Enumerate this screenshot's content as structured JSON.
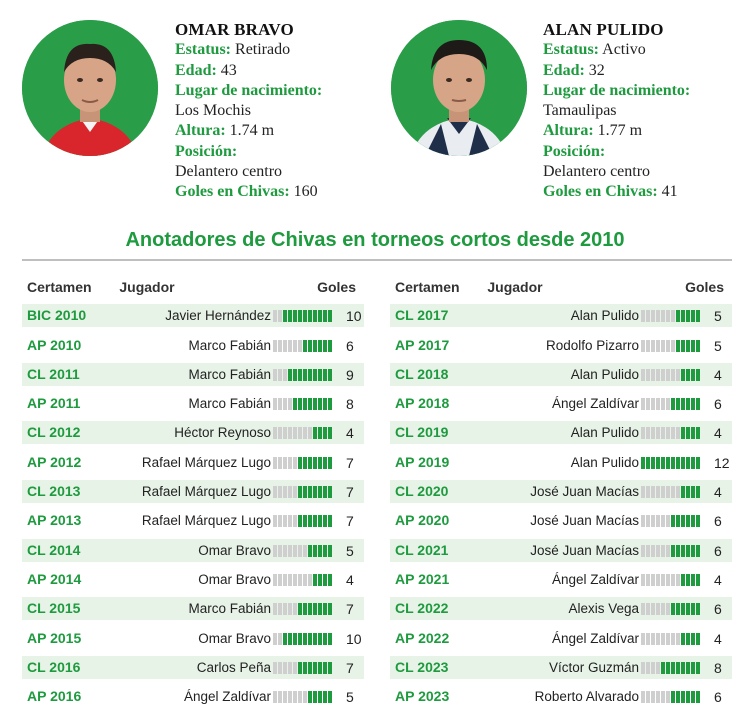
{
  "profiles": [
    {
      "name": "OMAR BRAVO",
      "status_label": "Estatus:",
      "status": "Retirado",
      "age_label": "Edad:",
      "age": "43",
      "birth_label": "Lugar de nacimiento:",
      "birth": "Los Mochis",
      "height_label": "Altura:",
      "height": "1.74 m",
      "position_label": "Posición:",
      "position": "Delantero centro",
      "goals_label": "Goles en Chivas:",
      "goals": "160"
    },
    {
      "name": "ALAN PULIDO",
      "status_label": "Estatus:",
      "status": "Activo",
      "age_label": "Edad:",
      "age": "32",
      "birth_label": "Lugar de nacimiento:",
      "birth": "Tamaulipas",
      "height_label": "Altura:",
      "height": "1.77 m",
      "position_label": "Posición:",
      "position": "Delantero centro",
      "goals_label": "Goles en Chivas:",
      "goals": "41"
    }
  ],
  "section_title": "Anotadores de Chivas en torneos cortos desde 2010",
  "columns": {
    "tournament": "Certamen",
    "player": "Jugador",
    "goals": "Goles"
  },
  "chart_data": {
    "type": "table",
    "bar_max": 12,
    "rows_left": [
      {
        "tournament": "BIC 2010",
        "player": "Javier Hernández",
        "goals": 10
      },
      {
        "tournament": "AP 2010",
        "player": "Marco Fabián",
        "goals": 6
      },
      {
        "tournament": "CL 2011",
        "player": "Marco Fabián",
        "goals": 9
      },
      {
        "tournament": "AP 2011",
        "player": "Marco Fabián",
        "goals": 8
      },
      {
        "tournament": "CL 2012",
        "player": "Héctor Reynoso",
        "goals": 4
      },
      {
        "tournament": "AP 2012",
        "player": "Rafael Márquez Lugo",
        "goals": 7
      },
      {
        "tournament": "CL 2013",
        "player": "Rafael Márquez Lugo",
        "goals": 7
      },
      {
        "tournament": "AP 2013",
        "player": "Rafael Márquez Lugo",
        "goals": 7
      },
      {
        "tournament": "CL 2014",
        "player": "Omar Bravo",
        "goals": 5
      },
      {
        "tournament": "AP 2014",
        "player": "Omar Bravo",
        "goals": 4
      },
      {
        "tournament": "CL 2015",
        "player": "Marco Fabián",
        "goals": 7
      },
      {
        "tournament": "AP 2015",
        "player": "Omar Bravo",
        "goals": 10
      },
      {
        "tournament": "CL 2016",
        "player": "Carlos Peña",
        "goals": 7
      },
      {
        "tournament": "AP 2016",
        "player": "Ángel Zaldívar",
        "goals": 5
      }
    ],
    "rows_right": [
      {
        "tournament": "CL 2017",
        "player": "Alan Pulido",
        "goals": 5
      },
      {
        "tournament": "AP 2017",
        "player": "Rodolfo Pizarro",
        "goals": 5
      },
      {
        "tournament": "CL 2018",
        "player": "Alan Pulido",
        "goals": 4
      },
      {
        "tournament": "AP 2018",
        "player": "Ángel Zaldívar",
        "goals": 6
      },
      {
        "tournament": "CL 2019",
        "player": "Alan Pulido",
        "goals": 4
      },
      {
        "tournament": "AP 2019",
        "player": "Alan Pulido",
        "goals": 12
      },
      {
        "tournament": "CL 2020",
        "player": "José Juan Macías",
        "goals": 4
      },
      {
        "tournament": "AP 2020",
        "player": "José Juan Macías",
        "goals": 6
      },
      {
        "tournament": "CL 2021",
        "player": "José Juan Macías",
        "goals": 6
      },
      {
        "tournament": "AP 2021",
        "player": "Ángel Zaldívar",
        "goals": 4
      },
      {
        "tournament": "CL 2022",
        "player": "Alexis Vega",
        "goals": 6
      },
      {
        "tournament": "AP 2022",
        "player": "Ángel Zaldívar",
        "goals": 4
      },
      {
        "tournament": "CL 2023",
        "player": "Víctor Guzmán",
        "goals": 8
      },
      {
        "tournament": "AP 2023",
        "player": "Roberto Alvarado",
        "goals": 6
      }
    ]
  },
  "colors": {
    "accent": "#1e9a3f",
    "bar_off": "#cfcfcf",
    "row_shade": "#e8f3e8"
  }
}
